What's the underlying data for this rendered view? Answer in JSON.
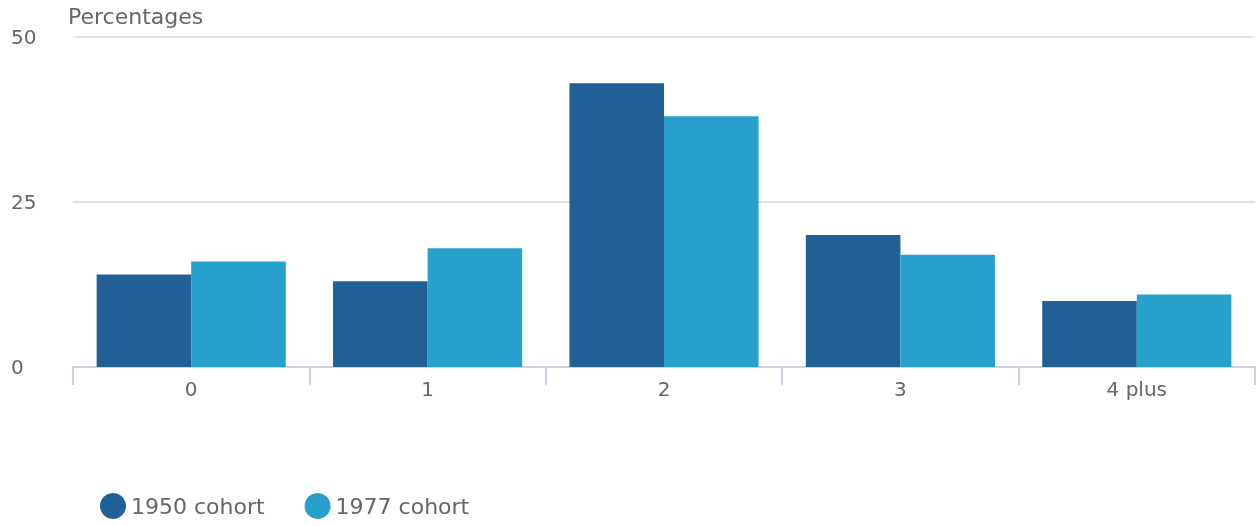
{
  "chart_data": {
    "type": "bar",
    "ylabel": "Percentages",
    "categories": [
      "0",
      "1",
      "2",
      "3",
      "4 plus"
    ],
    "series": [
      {
        "name": "1950 cohort",
        "color": "#206095",
        "values": [
          14,
          13,
          43,
          20,
          10
        ]
      },
      {
        "name": "1977 cohort",
        "color": "#27a0cc",
        "values": [
          16,
          18,
          38,
          17,
          11
        ]
      }
    ],
    "ylim": [
      0,
      50
    ],
    "yticks": [
      0,
      25,
      50
    ],
    "grid": "y",
    "legend": "bottom left"
  }
}
